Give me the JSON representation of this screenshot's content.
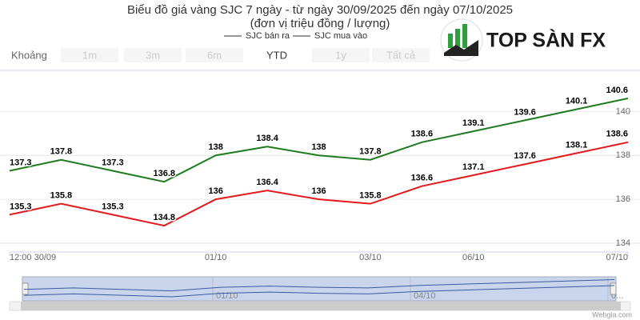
{
  "chart_data": {
    "type": "line",
    "title": "Biểu đồ giá vàng SJC 7 ngày - từ ngày 30/09/2025 đến ngày 07/10/2025",
    "subtitle": "(đơn vị triệu đồng / lượng)",
    "categories": [
      "12:00 30/09",
      null,
      null,
      null,
      "01/10",
      null,
      null,
      "03/10",
      null,
      "06/10",
      null,
      null,
      "07/10"
    ],
    "series": [
      {
        "name": "SJC bán ra",
        "color": "#1e7b1e",
        "values": [
          137.3,
          137.8,
          137.3,
          136.8,
          138,
          138.4,
          138,
          137.8,
          138.6,
          139.1,
          139.6,
          140.1,
          140.6
        ]
      },
      {
        "name": "SJC mua vào",
        "color": "#e3191c",
        "values": [
          135.3,
          135.8,
          135.3,
          134.8,
          136,
          136.4,
          136,
          135.8,
          136.6,
          137.1,
          137.6,
          138.1,
          138.6
        ]
      }
    ],
    "ylim": [
      133.6,
      141.8
    ],
    "yticks": [
      134,
      136,
      138,
      140
    ],
    "grid": true,
    "range_selector": {
      "label": "Khoảng",
      "buttons": [
        "1m",
        "3m",
        "6m",
        "YTD",
        "1y",
        "Tất cả"
      ]
    },
    "navigator_labels": [
      "01/10",
      "04/10",
      "0..."
    ],
    "watermark": "TOP SÀN FX",
    "credit": "Webgia.com"
  }
}
